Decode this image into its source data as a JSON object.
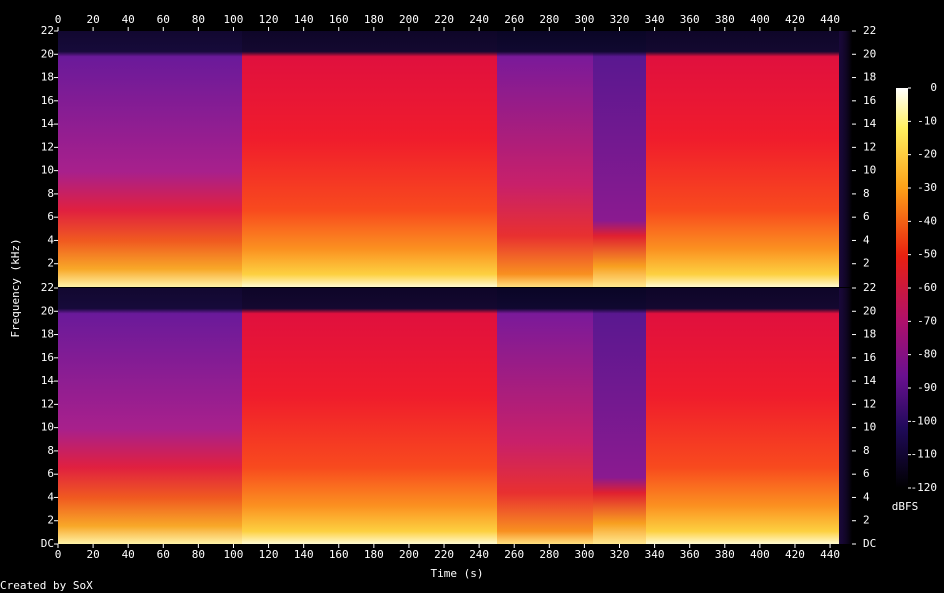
{
  "chart_data": {
    "type": "spectrogram",
    "xlabel": "Time (s)",
    "ylabel": "Frequency (kHz)",
    "xlim": [
      0,
      452.5
    ],
    "xticks": [
      0,
      20,
      40,
      60,
      80,
      100,
      120,
      140,
      160,
      180,
      200,
      220,
      240,
      260,
      280,
      300,
      320,
      340,
      360,
      380,
      400,
      420,
      440
    ],
    "ylim": [
      0,
      22
    ],
    "yticks": [
      {
        "value": 0,
        "label": "DC"
      },
      2,
      4,
      6,
      8,
      10,
      12,
      14,
      16,
      18,
      20,
      22
    ],
    "colorbar": {
      "label": "dBFS",
      "lim": [
        -120,
        0
      ],
      "ticks": [
        0,
        -10,
        -20,
        -30,
        -40,
        -50,
        -60,
        -70,
        -80,
        -90,
        -100,
        -110,
        -120
      ]
    }
  },
  "footer": "Created by SoX"
}
